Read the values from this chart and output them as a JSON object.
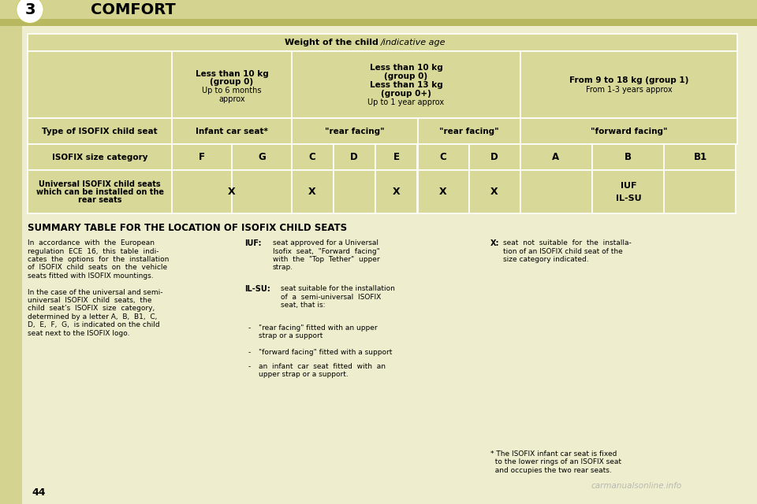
{
  "page_bg": "#eeeece",
  "header_bg": "#d4d490",
  "header_text": "COMFORT",
  "page_number": "44",
  "chapter_number": "3",
  "table_header_text_bold": "Weight of the child",
  "table_header_text_normal": "/indicative age",
  "col1_line1": "Less than 10 kg",
  "col1_line2": "(group 0)",
  "col1_line3": "Up to 6 months",
  "col1_line4": "approx",
  "col2_line1": "Less than 10 kg",
  "col2_line2": "(group 0)",
  "col2_line3": "Less than 13 kg",
  "col2_line4": "(group 0+)",
  "col2_line5": "Up to 1 year approx",
  "col3_line1": "From 9 to 18 kg (group 1)",
  "col3_line2": "From 1-3 years approx",
  "row1_label": "Type of ISOFIX child seat",
  "row1_c1": "Infant car seat*",
  "row1_c2": "\"rear facing\"",
  "row1_c3": "\"rear facing\"",
  "row1_c4": "\"forward facing\"",
  "row2_label": "ISOFIX size category",
  "size_labels": [
    "F",
    "G",
    "C",
    "D",
    "E",
    "C",
    "D",
    "A",
    "B",
    "B1"
  ],
  "row3_label1": "Universal ISOFIX child seats",
  "row3_label2": "which can be installed on the",
  "row3_label3": "rear seats",
  "row3_x_positions": [
    0,
    2,
    4,
    5,
    6
  ],
  "row3_iuf": "IUF",
  "row3_ilsu": "IL-SU",
  "summary_title": "SUMMARY TABLE FOR THE LOCATION OF ISOFIX CHILD SEATS",
  "watermark": "carmanualsonline.info"
}
